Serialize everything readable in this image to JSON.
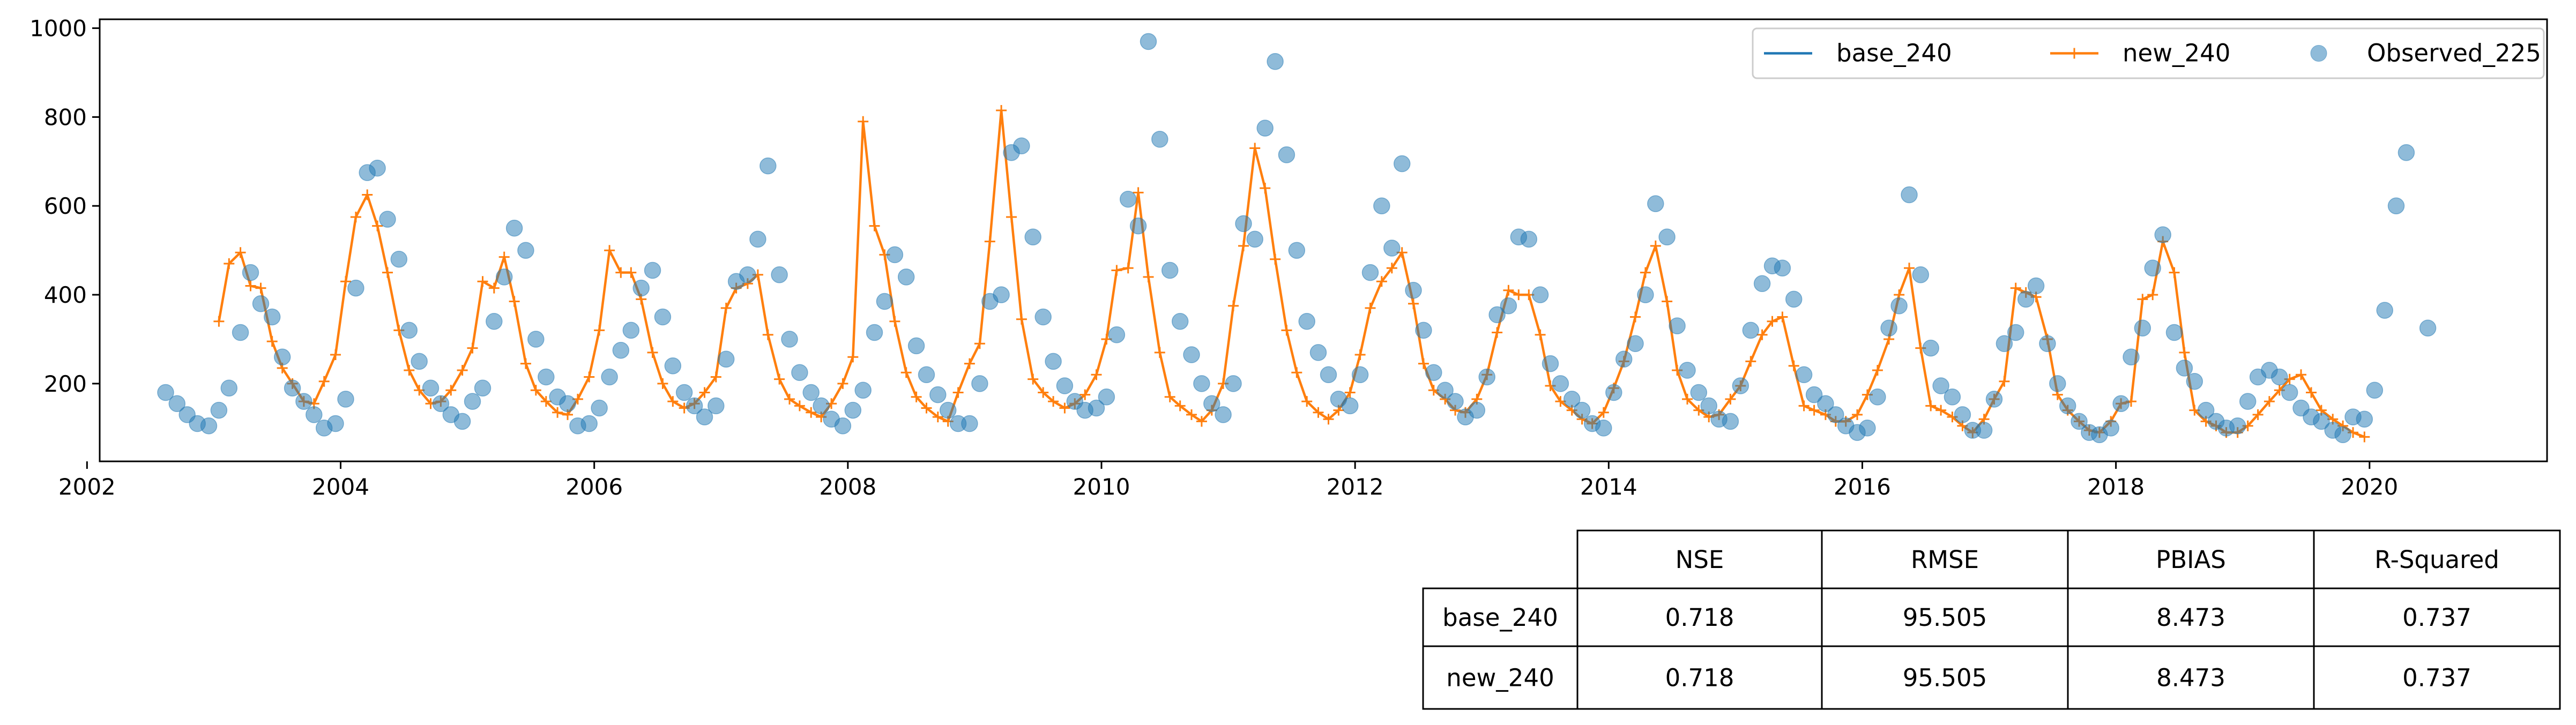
{
  "chart_data": {
    "type": "line",
    "title": "",
    "xlabel": "",
    "ylabel": "",
    "xlim": [
      2002.1,
      2021.4
    ],
    "ylim": [
      25,
      1020
    ],
    "x_ticks": [
      2002,
      2004,
      2006,
      2008,
      2010,
      2012,
      2014,
      2016,
      2018,
      2020
    ],
    "y_ticks": [
      200,
      400,
      600,
      800,
      1000
    ],
    "grid": false,
    "legend_position": "top-right",
    "colors": {
      "base": "#1f77b4",
      "new": "#ff7f0e",
      "observed": "#1f77b4"
    },
    "series": [
      {
        "name": "base_240",
        "type": "line",
        "x": [],
        "y": []
      },
      {
        "name": "new_240",
        "type": "line-marker",
        "x": [
          2003.04,
          2003.12,
          2003.21,
          2003.29,
          2003.37,
          2003.46,
          2003.54,
          2003.62,
          2003.71,
          2003.79,
          2003.87,
          2003.96,
          2004.04,
          2004.12,
          2004.21,
          2004.29,
          2004.37,
          2004.46,
          2004.54,
          2004.62,
          2004.71,
          2004.79,
          2004.87,
          2004.96,
          2005.04,
          2005.12,
          2005.21,
          2005.29,
          2005.37,
          2005.46,
          2005.54,
          2005.62,
          2005.71,
          2005.79,
          2005.87,
          2005.96,
          2006.04,
          2006.12,
          2006.21,
          2006.29,
          2006.37,
          2006.46,
          2006.54,
          2006.62,
          2006.71,
          2006.79,
          2006.87,
          2006.96,
          2007.04,
          2007.12,
          2007.21,
          2007.29,
          2007.37,
          2007.46,
          2007.54,
          2007.62,
          2007.71,
          2007.79,
          2007.87,
          2007.96,
          2008.04,
          2008.12,
          2008.21,
          2008.29,
          2008.37,
          2008.46,
          2008.54,
          2008.62,
          2008.71,
          2008.79,
          2008.87,
          2008.96,
          2009.04,
          2009.12,
          2009.21,
          2009.29,
          2009.37,
          2009.46,
          2009.54,
          2009.62,
          2009.71,
          2009.79,
          2009.87,
          2009.96,
          2010.04,
          2010.12,
          2010.21,
          2010.29,
          2010.37,
          2010.46,
          2010.54,
          2010.62,
          2010.71,
          2010.79,
          2010.87,
          2010.96,
          2011.04,
          2011.12,
          2011.21,
          2011.29,
          2011.37,
          2011.46,
          2011.54,
          2011.62,
          2011.71,
          2011.79,
          2011.87,
          2011.96,
          2012.04,
          2012.12,
          2012.21,
          2012.29,
          2012.37,
          2012.46,
          2012.54,
          2012.62,
          2012.71,
          2012.79,
          2012.87,
          2012.96,
          2013.04,
          2013.12,
          2013.21,
          2013.29,
          2013.37,
          2013.46,
          2013.54,
          2013.62,
          2013.71,
          2013.79,
          2013.87,
          2013.96,
          2014.04,
          2014.12,
          2014.21,
          2014.29,
          2014.37,
          2014.46,
          2014.54,
          2014.62,
          2014.71,
          2014.79,
          2014.87,
          2014.96,
          2015.04,
          2015.12,
          2015.21,
          2015.29,
          2015.37,
          2015.46,
          2015.54,
          2015.62,
          2015.71,
          2015.79,
          2015.87,
          2015.96,
          2016.04,
          2016.12,
          2016.21,
          2016.29,
          2016.37,
          2016.46,
          2016.54,
          2016.62,
          2016.71,
          2016.79,
          2016.87,
          2016.96,
          2017.04,
          2017.12,
          2017.21,
          2017.29,
          2017.37,
          2017.46,
          2017.54,
          2017.62,
          2017.71,
          2017.79,
          2017.87,
          2017.96,
          2018.04,
          2018.12,
          2018.21,
          2018.29,
          2018.37,
          2018.46,
          2018.54,
          2018.62,
          2018.71,
          2018.79,
          2018.87,
          2018.96,
          2019.04,
          2019.12,
          2019.21,
          2019.29,
          2019.37,
          2019.46,
          2019.54,
          2019.62,
          2019.71,
          2019.79,
          2019.87,
          2019.96
        ],
        "y": [
          340,
          470,
          495,
          420,
          415,
          295,
          235,
          200,
          160,
          155,
          205,
          265,
          430,
          575,
          625,
          555,
          450,
          320,
          230,
          185,
          155,
          160,
          185,
          230,
          280,
          430,
          415,
          485,
          385,
          245,
          185,
          160,
          135,
          130,
          165,
          215,
          320,
          500,
          450,
          450,
          390,
          270,
          200,
          160,
          145,
          155,
          180,
          215,
          370,
          415,
          425,
          445,
          310,
          210,
          165,
          150,
          135,
          125,
          155,
          200,
          260,
          790,
          555,
          490,
          340,
          225,
          170,
          145,
          125,
          115,
          180,
          245,
          290,
          520,
          815,
          575,
          345,
          210,
          180,
          160,
          145,
          155,
          175,
          220,
          300,
          455,
          460,
          630,
          440,
          270,
          170,
          150,
          130,
          115,
          140,
          200,
          375,
          510,
          730,
          640,
          480,
          320,
          225,
          160,
          135,
          120,
          140,
          180,
          265,
          370,
          430,
          460,
          495,
          380,
          245,
          185,
          165,
          140,
          135,
          165,
          220,
          315,
          410,
          400,
          400,
          310,
          195,
          160,
          140,
          120,
          110,
          135,
          190,
          250,
          350,
          450,
          510,
          385,
          230,
          165,
          140,
          125,
          130,
          165,
          195,
          250,
          310,
          340,
          350,
          240,
          150,
          140,
          130,
          115,
          115,
          130,
          175,
          230,
          300,
          400,
          460,
          280,
          150,
          140,
          125,
          105,
          90,
          120,
          165,
          205,
          415,
          405,
          395,
          300,
          175,
          140,
          115,
          95,
          90,
          115,
          155,
          160,
          390,
          400,
          520,
          450,
          270,
          140,
          115,
          105,
          90,
          90,
          105,
          130,
          160,
          185,
          210,
          220,
          180,
          140,
          120,
          105,
          90,
          80
        ]
      },
      {
        "name": "Observed_225",
        "type": "scatter",
        "x": [
          2002.62,
          2002.71,
          2002.79,
          2002.87,
          2002.96,
          2003.04,
          2003.12,
          2003.21,
          2003.29,
          2003.37,
          2003.46,
          2003.54,
          2003.62,
          2003.71,
          2003.79,
          2003.87,
          2003.96,
          2004.04,
          2004.12,
          2004.21,
          2004.29,
          2004.37,
          2004.46,
          2004.54,
          2004.62,
          2004.71,
          2004.79,
          2004.87,
          2004.96,
          2005.04,
          2005.12,
          2005.21,
          2005.29,
          2005.37,
          2005.46,
          2005.54,
          2005.62,
          2005.71,
          2005.79,
          2005.87,
          2005.96,
          2006.04,
          2006.12,
          2006.21,
          2006.29,
          2006.37,
          2006.46,
          2006.54,
          2006.62,
          2006.71,
          2006.79,
          2006.87,
          2006.96,
          2007.04,
          2007.12,
          2007.21,
          2007.29,
          2007.37,
          2007.46,
          2007.54,
          2007.62,
          2007.71,
          2007.79,
          2007.87,
          2007.96,
          2008.04,
          2008.12,
          2008.21,
          2008.29,
          2008.37,
          2008.46,
          2008.54,
          2008.62,
          2008.71,
          2008.79,
          2008.87,
          2008.96,
          2009.04,
          2009.12,
          2009.21,
          2009.29,
          2009.37,
          2009.46,
          2009.54,
          2009.62,
          2009.71,
          2009.79,
          2009.87,
          2009.96,
          2010.04,
          2010.12,
          2010.21,
          2010.29,
          2010.37,
          2010.46,
          2010.54,
          2010.62,
          2010.71,
          2010.79,
          2010.87,
          2010.96,
          2011.04,
          2011.12,
          2011.21,
          2011.29,
          2011.37,
          2011.46,
          2011.54,
          2011.62,
          2011.71,
          2011.79,
          2011.87,
          2011.96,
          2012.04,
          2012.12,
          2012.21,
          2012.29,
          2012.37,
          2012.46,
          2012.54,
          2012.62,
          2012.71,
          2012.79,
          2012.87,
          2012.96,
          2013.04,
          2013.12,
          2013.21,
          2013.29,
          2013.37,
          2013.46,
          2013.54,
          2013.62,
          2013.71,
          2013.79,
          2013.87,
          2013.96,
          2014.04,
          2014.12,
          2014.21,
          2014.29,
          2014.37,
          2014.46,
          2014.54,
          2014.62,
          2014.71,
          2014.79,
          2014.87,
          2014.96,
          2015.04,
          2015.12,
          2015.21,
          2015.29,
          2015.37,
          2015.46,
          2015.54,
          2015.62,
          2015.71,
          2015.79,
          2015.87,
          2015.96,
          2016.04,
          2016.12,
          2016.21,
          2016.29,
          2016.37,
          2016.46,
          2016.54,
          2016.62,
          2016.71,
          2016.79,
          2016.87,
          2016.96,
          2017.04,
          2017.12,
          2017.21,
          2017.29,
          2017.37,
          2017.46,
          2017.54,
          2017.62,
          2017.71,
          2017.79,
          2017.87,
          2017.96,
          2018.04,
          2018.12,
          2018.21,
          2018.29,
          2018.37,
          2018.46,
          2018.54,
          2018.62,
          2018.71,
          2018.79,
          2018.87,
          2018.96,
          2019.04,
          2019.12,
          2019.21,
          2019.29,
          2019.37,
          2019.46,
          2019.54,
          2019.62,
          2019.71,
          2019.79,
          2019.87,
          2019.96,
          2020.04,
          2020.12,
          2020.21,
          2020.29,
          2020.46
        ],
        "y": [
          180,
          155,
          130,
          110,
          105,
          140,
          190,
          315,
          450,
          380,
          350,
          260,
          190,
          160,
          130,
          100,
          110,
          165,
          415,
          675,
          685,
          570,
          480,
          320,
          250,
          190,
          155,
          130,
          115,
          160,
          190,
          340,
          440,
          550,
          500,
          300,
          215,
          170,
          155,
          105,
          110,
          145,
          215,
          275,
          320,
          415,
          455,
          350,
          240,
          180,
          150,
          125,
          150,
          255,
          430,
          445,
          525,
          690,
          445,
          300,
          225,
          180,
          150,
          120,
          105,
          140,
          185,
          315,
          385,
          490,
          440,
          285,
          220,
          175,
          140,
          110,
          110,
          200,
          385,
          400,
          720,
          735,
          530,
          350,
          250,
          195,
          160,
          140,
          145,
          170,
          310,
          615,
          555,
          970,
          750,
          455,
          340,
          265,
          200,
          155,
          130,
          200,
          560,
          525,
          775,
          925,
          715,
          500,
          340,
          270,
          220,
          165,
          150,
          220,
          450,
          600,
          505,
          695,
          410,
          320,
          225,
          185,
          160,
          125,
          140,
          215,
          355,
          375,
          530,
          525,
          400,
          245,
          200,
          165,
          140,
          110,
          100,
          180,
          255,
          290,
          400,
          605,
          530,
          330,
          230,
          180,
          150,
          120,
          115,
          195,
          320,
          425,
          465,
          460,
          390,
          220,
          175,
          155,
          130,
          105,
          90,
          100,
          170,
          325,
          375,
          625,
          445,
          280,
          195,
          170,
          130,
          95,
          95,
          165,
          290,
          315,
          390,
          420,
          290,
          200,
          150,
          115,
          90,
          85,
          100,
          155,
          260,
          325,
          460,
          535,
          315,
          235,
          205,
          140,
          115,
          100,
          105,
          160,
          215,
          230,
          215,
          180,
          145,
          125,
          115,
          95,
          85,
          125,
          120,
          185,
          365,
          600,
          720,
          325
        ]
      }
    ],
    "legend": [
      "base_240",
      "new_240",
      "Observed_225"
    ],
    "table": {
      "columns": [
        "NSE",
        "RMSE",
        "PBIAS",
        "R-Squared"
      ],
      "rows": [
        {
          "label": "base_240",
          "values": [
            "0.718",
            "95.505",
            "8.473",
            "0.737"
          ]
        },
        {
          "label": "new_240",
          "values": [
            "0.718",
            "95.505",
            "8.473",
            "0.737"
          ]
        }
      ]
    }
  }
}
